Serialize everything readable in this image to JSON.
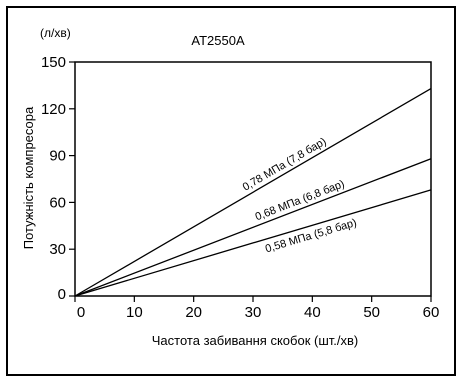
{
  "chart_data": {
    "type": "line",
    "title": "AT2550A",
    "y_unit": "(л/хв)",
    "xlabel": "Частота забивання скобок (шт./хв)",
    "ylabel": "Потужність компресора",
    "xlim": [
      0,
      60
    ],
    "ylim": [
      0,
      150
    ],
    "xticks": [
      "0",
      "10",
      "20",
      "30",
      "40",
      "50",
      "60"
    ],
    "yticks": [
      "0",
      "30",
      "60",
      "90",
      "120",
      "150"
    ],
    "grid": false,
    "legend": "none",
    "series": [
      {
        "name": "0,78 МПа (7,8 бар)",
        "x": [
          0,
          60
        ],
        "y": [
          0,
          133
        ]
      },
      {
        "name": "0,68 МПа (6,8 бар)",
        "x": [
          0,
          60
        ],
        "y": [
          0,
          88
        ]
      },
      {
        "name": "0,58 МПа (5,8 бар)",
        "x": [
          0,
          60
        ],
        "y": [
          0,
          68
        ]
      }
    ],
    "line_color": "#000000"
  }
}
